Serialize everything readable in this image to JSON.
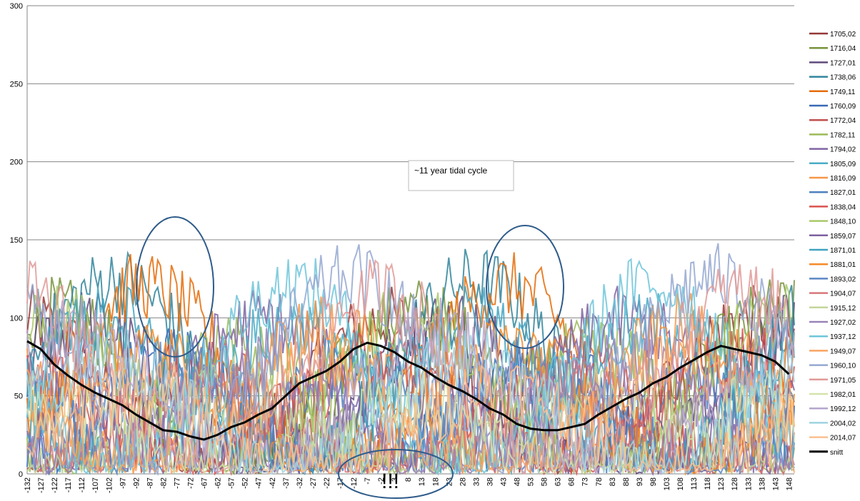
{
  "chart_data": {
    "type": "line",
    "title": "",
    "xlabel": "",
    "ylabel": "",
    "ylim": [
      0,
      300
    ],
    "xlim": [
      -132,
      150
    ],
    "y_ticks": [
      0,
      50,
      100,
      150,
      200,
      250,
      300
    ],
    "x_ticks": [
      -132,
      -127,
      -122,
      -117,
      -112,
      -107,
      -102,
      -97,
      -92,
      -87,
      -82,
      -77,
      -72,
      -67,
      -62,
      -57,
      -52,
      -47,
      -42,
      -37,
      -32,
      -27,
      -22,
      -17,
      -12,
      -7,
      -2,
      3,
      8,
      13,
      18,
      23,
      28,
      33,
      38,
      43,
      48,
      53,
      58,
      63,
      68,
      73,
      78,
      83,
      88,
      93,
      98,
      103,
      108,
      113,
      118,
      123,
      128,
      133,
      138,
      143,
      148
    ],
    "grid": "horizontal",
    "legend_position": "right",
    "annotations": {
      "tidal_note": "~11 year tidal cycle",
      "exclamation": "!!!"
    },
    "series_legend": [
      {
        "name": "1705,02",
        "color": "#953735"
      },
      {
        "name": "1716,04",
        "color": "#77933c"
      },
      {
        "name": "1727,01",
        "color": "#604a7b"
      },
      {
        "name": "1738,06",
        "color": "#31859c"
      },
      {
        "name": "1749,11",
        "color": "#e46c0a"
      },
      {
        "name": "1760,09",
        "color": "#3869b5"
      },
      {
        "name": "1772,04",
        "color": "#c0504d"
      },
      {
        "name": "1782,11",
        "color": "#9bbb59"
      },
      {
        "name": "1794,02",
        "color": "#8064a2"
      },
      {
        "name": "1805,09",
        "color": "#4bacc6"
      },
      {
        "name": "1816,09",
        "color": "#f79646"
      },
      {
        "name": "1827,01",
        "color": "#4f81bd"
      },
      {
        "name": "1838,04",
        "color": "#d9534f"
      },
      {
        "name": "1848,10",
        "color": "#a9c96b"
      },
      {
        "name": "1859,07",
        "color": "#7d60a0"
      },
      {
        "name": "1871,01",
        "color": "#3fa3c0"
      },
      {
        "name": "1881,01",
        "color": "#f58b2a"
      },
      {
        "name": "1893,02",
        "color": "#5b87c4"
      },
      {
        "name": "1904,07",
        "color": "#d8777a"
      },
      {
        "name": "1915,12",
        "color": "#c3d69b"
      },
      {
        "name": "1927,02",
        "color": "#9982b8"
      },
      {
        "name": "1937,12",
        "color": "#6ec6d9"
      },
      {
        "name": "1949,07",
        "color": "#f9a463"
      },
      {
        "name": "1960,10",
        "color": "#95a8d1"
      },
      {
        "name": "1971,05",
        "color": "#e09a98"
      },
      {
        "name": "1982,01",
        "color": "#d3e3aa"
      },
      {
        "name": "1992,12",
        "color": "#b6a6cc"
      },
      {
        "name": "2004,02",
        "color": "#9fd3e2"
      },
      {
        "name": "2014,07",
        "color": "#fbbf8e"
      },
      {
        "name": "snitt",
        "color": "#000000"
      }
    ],
    "series": [
      {
        "name": "snitt",
        "color": "#000000",
        "x": [
          -132,
          -127,
          -122,
          -117,
          -112,
          -107,
          -102,
          -97,
          -92,
          -87,
          -82,
          -77,
          -72,
          -67,
          -62,
          -57,
          -52,
          -47,
          -42,
          -37,
          -32,
          -27,
          -22,
          -17,
          -12,
          -7,
          -2,
          3,
          8,
          13,
          18,
          23,
          28,
          33,
          38,
          43,
          48,
          53,
          58,
          63,
          68,
          73,
          78,
          83,
          88,
          93,
          98,
          103,
          108,
          113,
          118,
          123,
          128,
          133,
          138,
          143,
          148
        ],
        "values": [
          85,
          80,
          70,
          63,
          57,
          52,
          48,
          44,
          38,
          33,
          28,
          27,
          24,
          22,
          25,
          30,
          33,
          38,
          42,
          50,
          58,
          62,
          66,
          72,
          80,
          84,
          82,
          78,
          72,
          68,
          62,
          57,
          53,
          48,
          42,
          38,
          32,
          29,
          28,
          28,
          30,
          32,
          38,
          43,
          48,
          52,
          58,
          62,
          68,
          73,
          78,
          82,
          80,
          78,
          76,
          72,
          64
        ]
      }
    ]
  }
}
